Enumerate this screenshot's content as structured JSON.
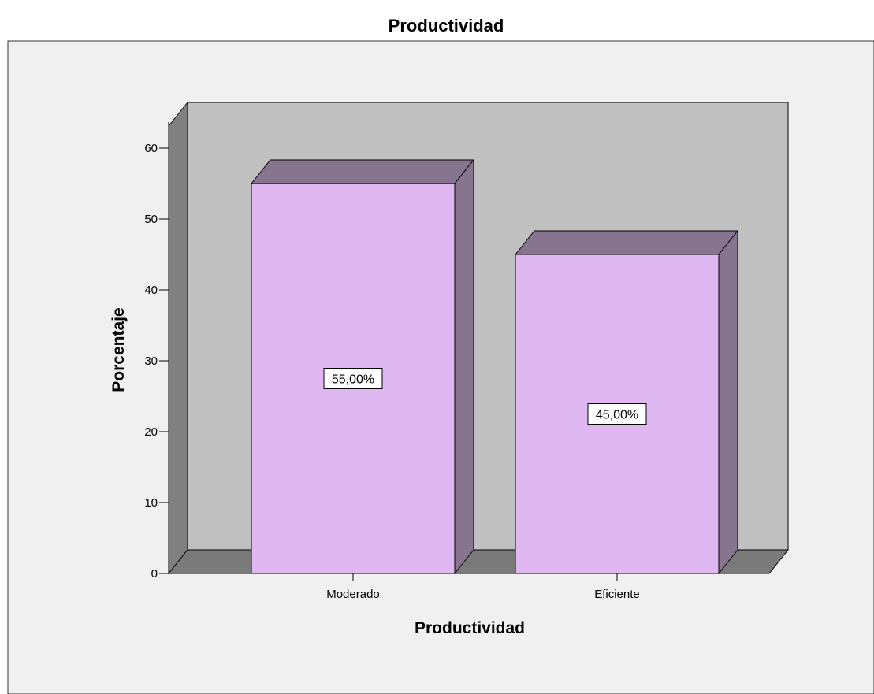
{
  "chart_data": {
    "type": "bar",
    "title": "Productividad",
    "xlabel": "Productividad",
    "ylabel": "Porcentaje",
    "categories": [
      "Moderado",
      "Eficiente"
    ],
    "values": [
      55,
      45
    ],
    "data_labels": [
      "55,00%",
      "45,00%"
    ],
    "y_ticks": [
      "0",
      "10",
      "20",
      "30",
      "40",
      "50",
      "60"
    ],
    "ylim": [
      0,
      65
    ],
    "grid": false,
    "three_d": true,
    "colors": {
      "bar_front": "#dfb8f2",
      "bar_side": "#87748f",
      "wall": "#c0c0c0",
      "floor": "#7a7a7a",
      "left_wall": "#808080",
      "background": "#f0f0f0"
    }
  }
}
